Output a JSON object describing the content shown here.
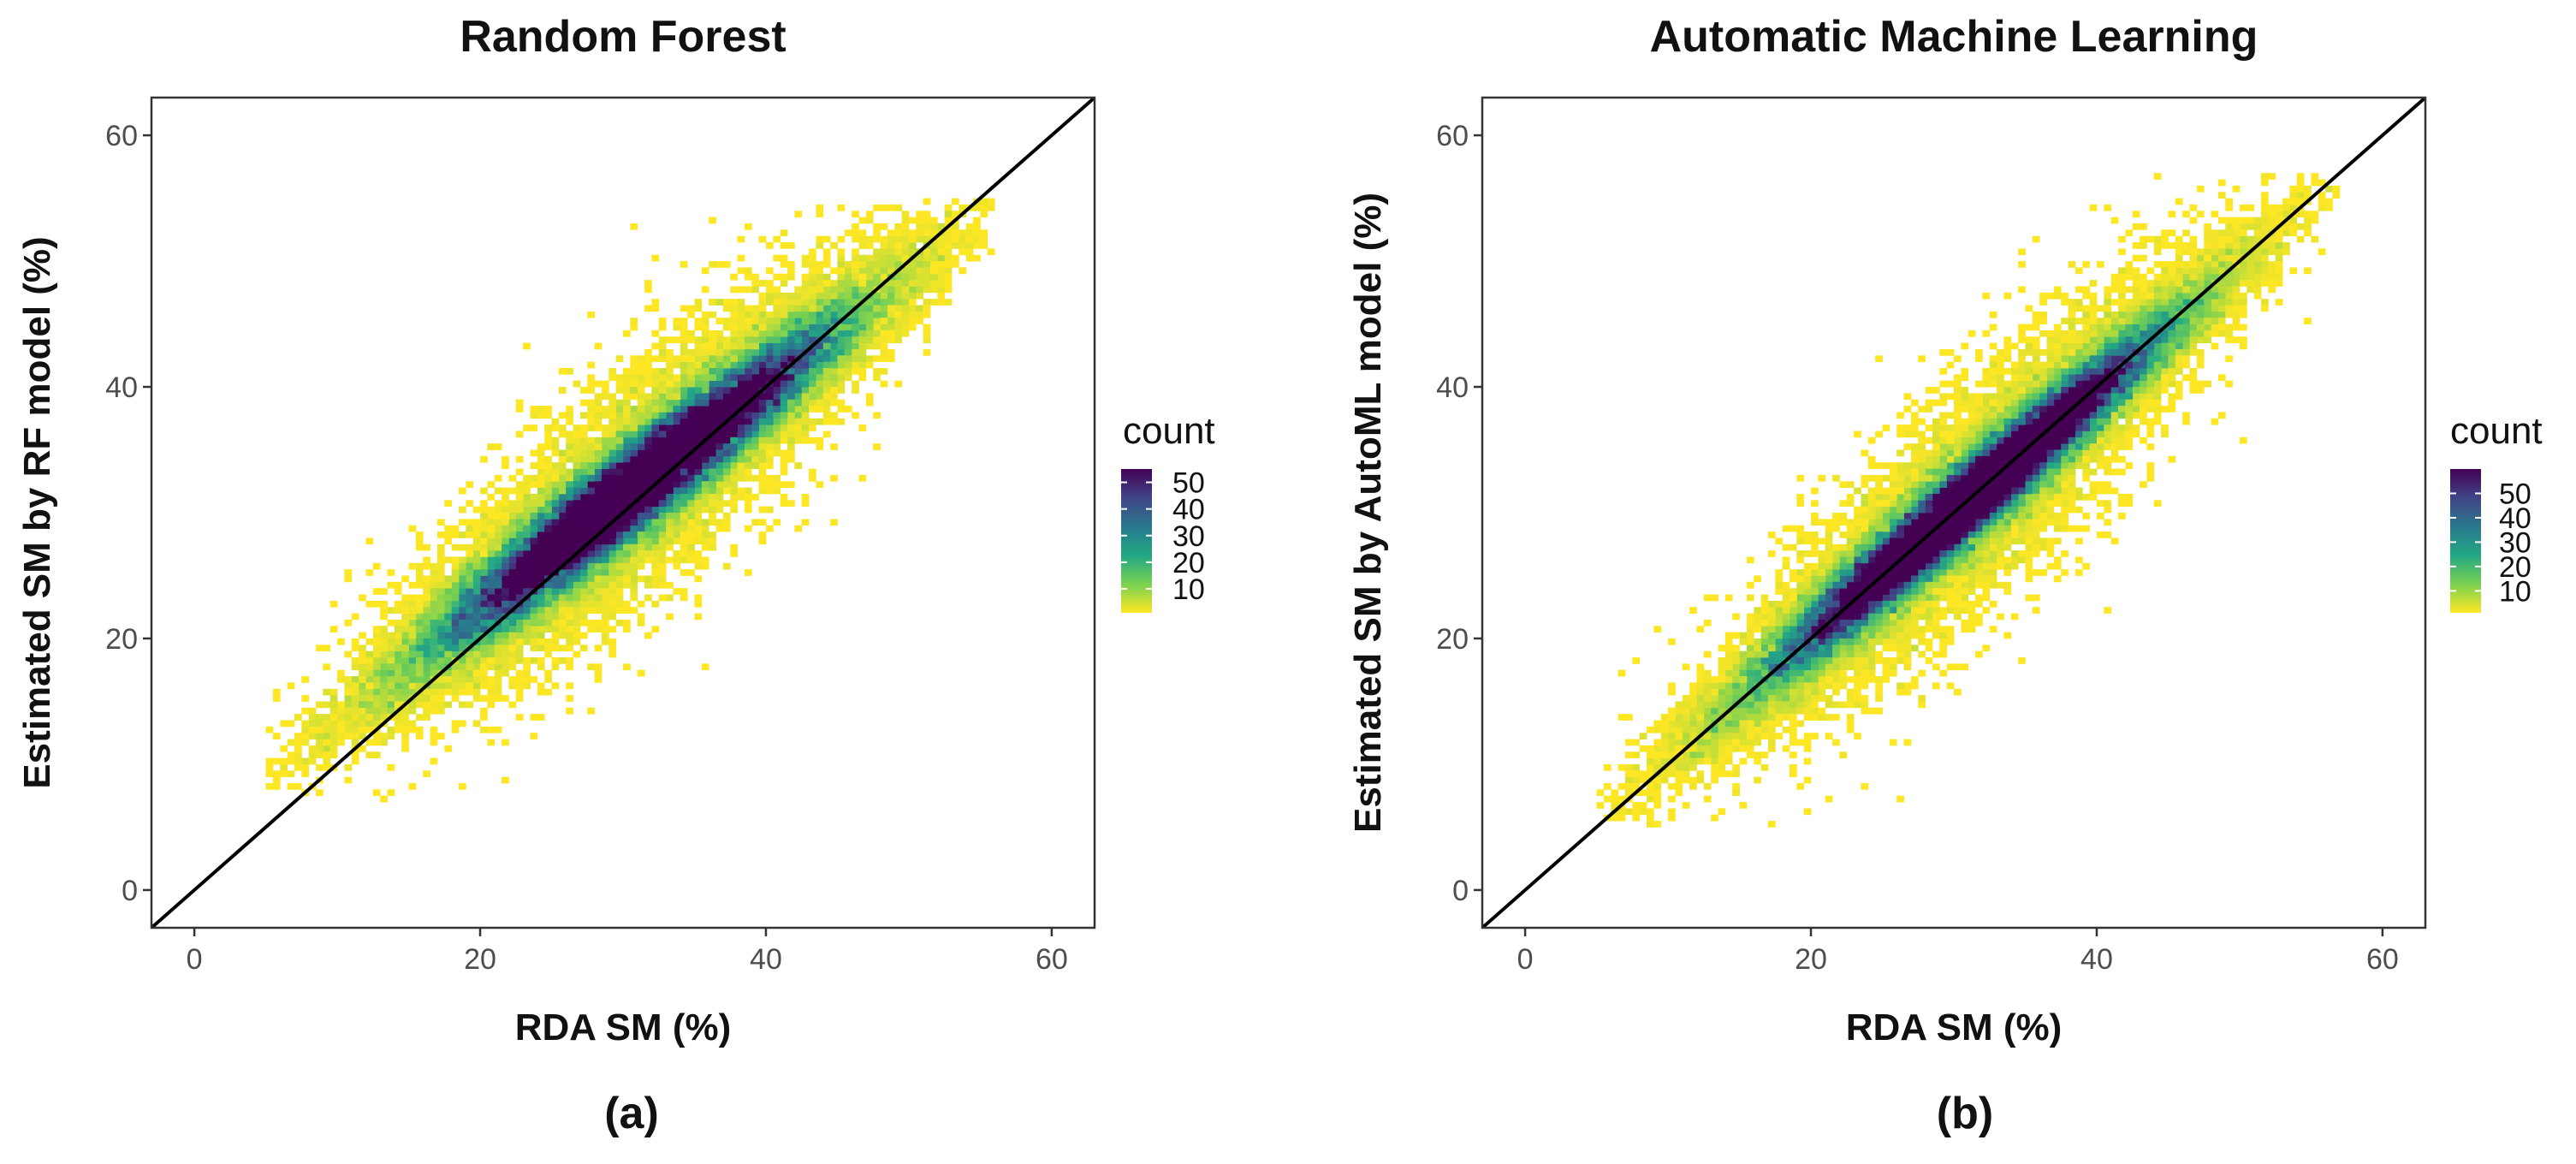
{
  "chart_data": [
    {
      "type": "heatmap",
      "subtype": "bin2d",
      "panel_label": "(a)",
      "title": "Random Forest",
      "xlabel": "RDA SM (%)",
      "ylabel": "Estimated SM by RF model (%)",
      "xlim": [
        -3,
        63
      ],
      "ylim": [
        -3,
        63
      ],
      "x_ticks": [
        0,
        20,
        40,
        60
      ],
      "y_ticks": [
        0,
        20,
        40,
        60
      ],
      "x_tick_labels": [
        "0",
        "20",
        "40",
        "60"
      ],
      "y_tick_labels": [
        "0",
        "20",
        "40",
        "60"
      ],
      "bin_width": 0.5,
      "identity_line": {
        "from": [
          -3,
          -3
        ],
        "to": [
          63,
          63
        ],
        "color": "#000000"
      },
      "point_cloud": {
        "x_range": [
          5,
          56
        ],
        "y_range": [
          7,
          55
        ],
        "center": [
          31,
          31
        ],
        "slope": 0.88
      },
      "legend": {
        "title": "count",
        "ticks": [
          10,
          20,
          30,
          40,
          50
        ],
        "tick_labels": [
          "10",
          "20",
          "30",
          "40",
          "50"
        ],
        "range": [
          1,
          55
        ],
        "colors": [
          "#fde725",
          "#7ad151",
          "#22a884",
          "#2a788e",
          "#414487",
          "#440154"
        ]
      }
    },
    {
      "type": "heatmap",
      "subtype": "bin2d",
      "panel_label": "(b)",
      "title": "Automatic Machine Learning",
      "xlabel": "RDA SM (%)",
      "ylabel": "Estimated SM by AutoML model (%)",
      "xlim": [
        -3,
        63
      ],
      "ylim": [
        -3,
        63
      ],
      "x_ticks": [
        0,
        20,
        40,
        60
      ],
      "y_ticks": [
        0,
        20,
        40,
        60
      ],
      "x_tick_labels": [
        "0",
        "20",
        "40",
        "60"
      ],
      "y_tick_labels": [
        "0",
        "20",
        "40",
        "60"
      ],
      "bin_width": 0.5,
      "identity_line": {
        "from": [
          -3,
          -3
        ],
        "to": [
          63,
          63
        ],
        "color": "#000000"
      },
      "point_cloud": {
        "x_range": [
          5,
          57
        ],
        "y_range": [
          5,
          57
        ],
        "center": [
          31,
          31
        ],
        "slope": 0.97
      },
      "legend": {
        "title": "count",
        "ticks": [
          10,
          20,
          30,
          40,
          50
        ],
        "tick_labels": [
          "10",
          "20",
          "30",
          "40",
          "50"
        ],
        "range": [
          1,
          60
        ],
        "colors": [
          "#fde725",
          "#7ad151",
          "#22a884",
          "#2a788e",
          "#414487",
          "#440154"
        ]
      }
    }
  ]
}
